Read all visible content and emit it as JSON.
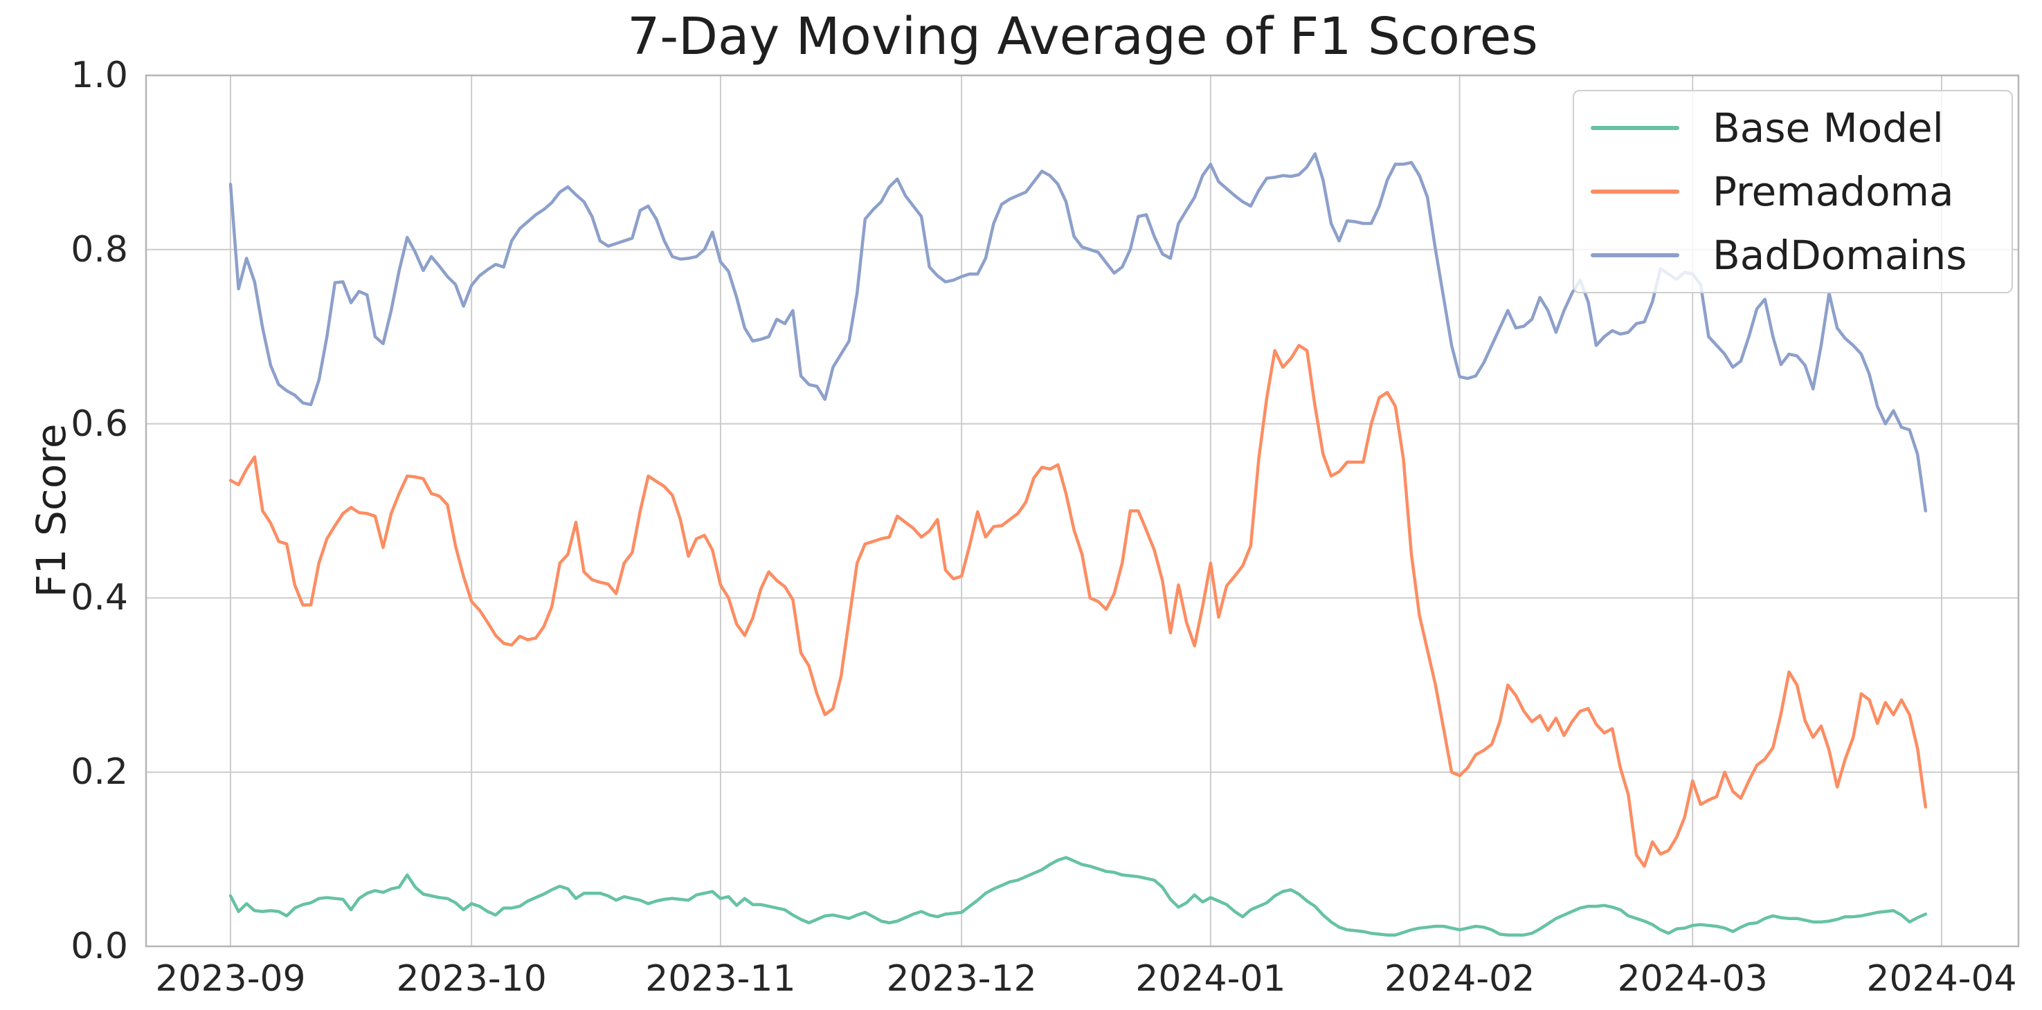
{
  "figure": {
    "background_color": "#ffffff",
    "grid_color": "#cccccc",
    "spine_color": "#b5b5b5",
    "text_color": "#262626"
  },
  "chart_data": {
    "type": "line",
    "title": "7-Day Moving Average of F1 Scores",
    "xlabel": "",
    "ylabel": "F1 Score",
    "ylim": [
      0.0,
      1.0
    ],
    "grid": true,
    "legend_position": "upper right",
    "x_start_date": "2023-09-01",
    "x_end_date": "2024-03-30",
    "x_interval": "daily",
    "x_tick_labels": [
      "2023-09",
      "2023-10",
      "2023-11",
      "2023-12",
      "2024-01",
      "2024-02",
      "2024-03",
      "2024-04"
    ],
    "x_tick_day_offsets": [
      0,
      30,
      61,
      91,
      122,
      153,
      182,
      213
    ],
    "y_tick_labels": [
      "0.0",
      "0.2",
      "0.4",
      "0.6",
      "0.8",
      "1.0"
    ],
    "y_tick_values": [
      0.0,
      0.2,
      0.4,
      0.6,
      0.8,
      1.0
    ],
    "series": [
      {
        "name": "Base Model",
        "color": "#66c2a5",
        "values": [
          0.058,
          0.04,
          0.049,
          0.041,
          0.04,
          0.041,
          0.04,
          0.035,
          0.044,
          0.048,
          0.05,
          0.055,
          0.056,
          0.055,
          0.054,
          0.042,
          0.055,
          0.061,
          0.064,
          0.062,
          0.066,
          0.068,
          0.082,
          0.068,
          0.06,
          0.058,
          0.056,
          0.055,
          0.05,
          0.042,
          0.049,
          0.046,
          0.04,
          0.036,
          0.044,
          0.044,
          0.046,
          0.052,
          0.056,
          0.06,
          0.065,
          0.069,
          0.066,
          0.055,
          0.061,
          0.061,
          0.061,
          0.058,
          0.053,
          0.057,
          0.055,
          0.053,
          0.049,
          0.052,
          0.054,
          0.055,
          0.054,
          0.053,
          0.059,
          0.061,
          0.063,
          0.055,
          0.057,
          0.047,
          0.055,
          0.048,
          0.048,
          0.046,
          0.044,
          0.042,
          0.036,
          0.031,
          0.027,
          0.031,
          0.035,
          0.036,
          0.034,
          0.032,
          0.036,
          0.039,
          0.034,
          0.029,
          0.027,
          0.029,
          0.033,
          0.037,
          0.04,
          0.036,
          0.034,
          0.037,
          0.038,
          0.039,
          0.046,
          0.053,
          0.061,
          0.066,
          0.07,
          0.074,
          0.076,
          0.08,
          0.084,
          0.088,
          0.094,
          0.099,
          0.102,
          0.098,
          0.094,
          0.092,
          0.089,
          0.086,
          0.085,
          0.082,
          0.081,
          0.08,
          0.078,
          0.076,
          0.068,
          0.054,
          0.045,
          0.05,
          0.059,
          0.051,
          0.056,
          0.052,
          0.048,
          0.04,
          0.034,
          0.042,
          0.046,
          0.05,
          0.058,
          0.063,
          0.065,
          0.06,
          0.052,
          0.046,
          0.036,
          0.028,
          0.022,
          0.019,
          0.018,
          0.017,
          0.015,
          0.014,
          0.013,
          0.013,
          0.016,
          0.019,
          0.021,
          0.022,
          0.023,
          0.023,
          0.021,
          0.019,
          0.021,
          0.023,
          0.022,
          0.019,
          0.014,
          0.013,
          0.013,
          0.013,
          0.015,
          0.02,
          0.026,
          0.032,
          0.036,
          0.04,
          0.044,
          0.046,
          0.046,
          0.047,
          0.045,
          0.042,
          0.035,
          0.032,
          0.029,
          0.025,
          0.019,
          0.015,
          0.02,
          0.021,
          0.024,
          0.025,
          0.024,
          0.023,
          0.021,
          0.017,
          0.022,
          0.026,
          0.027,
          0.032,
          0.035,
          0.033,
          0.032,
          0.032,
          0.03,
          0.028,
          0.028,
          0.029,
          0.031,
          0.034,
          0.034,
          0.035,
          0.037,
          0.039,
          0.04,
          0.041,
          0.036,
          0.028,
          0.033,
          0.037
        ]
      },
      {
        "name": "Premadoma",
        "color": "#fc8d62",
        "values": [
          0.535,
          0.53,
          0.548,
          0.562,
          0.5,
          0.486,
          0.465,
          0.462,
          0.415,
          0.392,
          0.392,
          0.44,
          0.468,
          0.483,
          0.497,
          0.504,
          0.498,
          0.497,
          0.494,
          0.458,
          0.497,
          0.52,
          0.54,
          0.539,
          0.537,
          0.52,
          0.517,
          0.507,
          0.46,
          0.425,
          0.396,
          0.386,
          0.372,
          0.357,
          0.348,
          0.346,
          0.356,
          0.352,
          0.354,
          0.367,
          0.39,
          0.44,
          0.45,
          0.487,
          0.43,
          0.421,
          0.418,
          0.416,
          0.405,
          0.44,
          0.452,
          0.5,
          0.54,
          0.534,
          0.528,
          0.518,
          0.49,
          0.448,
          0.468,
          0.472,
          0.455,
          0.415,
          0.4,
          0.37,
          0.357,
          0.377,
          0.41,
          0.43,
          0.42,
          0.413,
          0.398,
          0.337,
          0.322,
          0.29,
          0.266,
          0.273,
          0.31,
          0.375,
          0.44,
          0.462,
          0.465,
          0.468,
          0.47,
          0.494,
          0.487,
          0.48,
          0.47,
          0.477,
          0.49,
          0.432,
          0.422,
          0.425,
          0.46,
          0.499,
          0.47,
          0.482,
          0.483,
          0.49,
          0.497,
          0.51,
          0.538,
          0.55,
          0.548,
          0.553,
          0.52,
          0.478,
          0.45,
          0.4,
          0.396,
          0.387,
          0.405,
          0.44,
          0.5,
          0.5,
          0.478,
          0.455,
          0.42,
          0.36,
          0.415,
          0.372,
          0.345,
          0.39,
          0.44,
          0.378,
          0.414,
          0.425,
          0.437,
          0.46,
          0.56,
          0.63,
          0.684,
          0.665,
          0.675,
          0.69,
          0.684,
          0.62,
          0.565,
          0.54,
          0.545,
          0.556,
          0.556,
          0.556,
          0.6,
          0.63,
          0.636,
          0.62,
          0.56,
          0.45,
          0.38,
          0.34,
          0.3,
          0.25,
          0.2,
          0.196,
          0.205,
          0.22,
          0.225,
          0.232,
          0.258,
          0.3,
          0.288,
          0.27,
          0.258,
          0.265,
          0.248,
          0.262,
          0.242,
          0.258,
          0.27,
          0.273,
          0.255,
          0.245,
          0.25,
          0.205,
          0.174,
          0.105,
          0.092,
          0.12,
          0.106,
          0.11,
          0.125,
          0.148,
          0.19,
          0.163,
          0.168,
          0.172,
          0.2,
          0.178,
          0.17,
          0.19,
          0.208,
          0.215,
          0.228,
          0.267,
          0.315,
          0.3,
          0.259,
          0.24,
          0.253,
          0.225,
          0.183,
          0.215,
          0.24,
          0.29,
          0.283,
          0.256,
          0.28,
          0.266,
          0.283,
          0.266,
          0.227,
          0.16
        ]
      },
      {
        "name": "BadDomains",
        "color": "#8da0cb",
        "values": [
          0.875,
          0.755,
          0.79,
          0.763,
          0.71,
          0.667,
          0.645,
          0.638,
          0.633,
          0.624,
          0.622,
          0.65,
          0.7,
          0.762,
          0.763,
          0.739,
          0.752,
          0.748,
          0.7,
          0.692,
          0.73,
          0.776,
          0.814,
          0.797,
          0.776,
          0.792,
          0.781,
          0.769,
          0.76,
          0.735,
          0.759,
          0.77,
          0.777,
          0.783,
          0.78,
          0.81,
          0.824,
          0.832,
          0.84,
          0.846,
          0.854,
          0.866,
          0.872,
          0.863,
          0.855,
          0.838,
          0.81,
          0.804,
          0.807,
          0.81,
          0.813,
          0.845,
          0.85,
          0.835,
          0.81,
          0.792,
          0.789,
          0.79,
          0.792,
          0.8,
          0.82,
          0.786,
          0.775,
          0.745,
          0.71,
          0.695,
          0.697,
          0.7,
          0.72,
          0.715,
          0.73,
          0.655,
          0.645,
          0.643,
          0.628,
          0.665,
          0.68,
          0.695,
          0.75,
          0.835,
          0.846,
          0.855,
          0.872,
          0.881,
          0.862,
          0.85,
          0.838,
          0.78,
          0.77,
          0.763,
          0.765,
          0.769,
          0.772,
          0.772,
          0.79,
          0.83,
          0.852,
          0.858,
          0.862,
          0.866,
          0.878,
          0.89,
          0.885,
          0.875,
          0.855,
          0.815,
          0.803,
          0.8,
          0.797,
          0.785,
          0.773,
          0.78,
          0.8,
          0.838,
          0.84,
          0.815,
          0.795,
          0.79,
          0.83,
          0.845,
          0.86,
          0.885,
          0.898,
          0.878,
          0.87,
          0.862,
          0.855,
          0.85,
          0.868,
          0.882,
          0.883,
          0.885,
          0.884,
          0.886,
          0.895,
          0.91,
          0.88,
          0.83,
          0.81,
          0.833,
          0.832,
          0.83,
          0.83,
          0.85,
          0.88,
          0.898,
          0.898,
          0.9,
          0.885,
          0.86,
          0.8,
          0.745,
          0.69,
          0.654,
          0.652,
          0.655,
          0.67,
          0.69,
          0.71,
          0.73,
          0.71,
          0.712,
          0.72,
          0.745,
          0.73,
          0.705,
          0.73,
          0.75,
          0.765,
          0.74,
          0.69,
          0.7,
          0.707,
          0.703,
          0.705,
          0.715,
          0.717,
          0.74,
          0.778,
          0.772,
          0.766,
          0.774,
          0.772,
          0.76,
          0.7,
          0.69,
          0.68,
          0.665,
          0.672,
          0.7,
          0.732,
          0.743,
          0.7,
          0.668,
          0.68,
          0.678,
          0.667,
          0.64,
          0.69,
          0.75,
          0.71,
          0.698,
          0.69,
          0.68,
          0.657,
          0.62,
          0.6,
          0.615,
          0.596,
          0.593,
          0.565,
          0.5
        ]
      }
    ]
  }
}
